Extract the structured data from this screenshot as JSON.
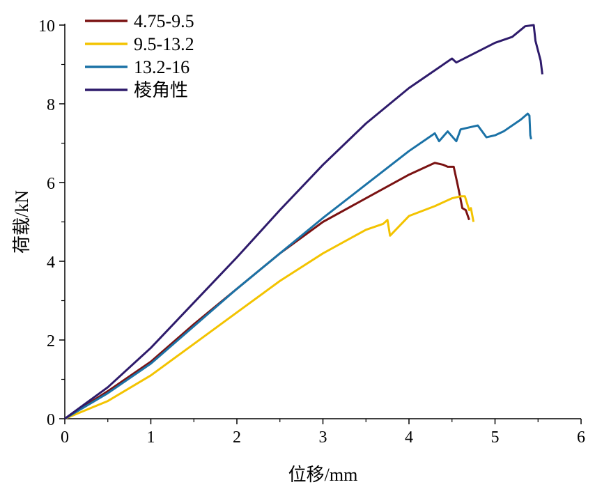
{
  "chart_data": {
    "type": "line",
    "title": "",
    "xlabel": "位移/mm",
    "ylabel": "荷载/kN",
    "xlim": [
      0,
      6
    ],
    "ylim": [
      0,
      10
    ],
    "xticks": [
      "0",
      "1",
      "2",
      "3",
      "4",
      "5",
      "6"
    ],
    "yticks": [
      "0",
      "2",
      "4",
      "6",
      "8",
      "10"
    ],
    "grid": false,
    "legend_position": "top-left",
    "series": [
      {
        "name": "4.75-9.5",
        "color": "#7a1212",
        "x": [
          0,
          0.5,
          1,
          1.5,
          2,
          2.5,
          3,
          3.5,
          4,
          4.2,
          4.3,
          4.4,
          4.45,
          4.52,
          4.57,
          4.62,
          4.66,
          4.7
        ],
        "y": [
          0,
          0.7,
          1.45,
          2.4,
          3.3,
          4.2,
          5.0,
          5.6,
          6.2,
          6.4,
          6.5,
          6.45,
          6.4,
          6.4,
          5.9,
          5.35,
          5.3,
          5.05
        ]
      },
      {
        "name": "9.5-13.2",
        "color": "#f3c300",
        "x": [
          0,
          0.5,
          1,
          1.5,
          2,
          2.5,
          3,
          3.5,
          3.7,
          3.75,
          3.78,
          4,
          4.3,
          4.5,
          4.6,
          4.65,
          4.7,
          4.72,
          4.75
        ],
        "y": [
          0,
          0.45,
          1.1,
          1.9,
          2.7,
          3.5,
          4.2,
          4.8,
          4.95,
          5.05,
          4.65,
          5.15,
          5.4,
          5.6,
          5.65,
          5.65,
          5.3,
          5.35,
          5.0
        ]
      },
      {
        "name": "13.2-16",
        "color": "#1b72a6",
        "x": [
          0,
          0.5,
          1,
          1.5,
          2,
          2.5,
          3,
          3.5,
          4,
          4.2,
          4.3,
          4.35,
          4.45,
          4.55,
          4.6,
          4.8,
          4.9,
          5.0,
          5.1,
          5.3,
          5.38,
          5.4,
          5.41,
          5.42
        ],
        "y": [
          0,
          0.65,
          1.4,
          2.35,
          3.3,
          4.2,
          5.1,
          5.95,
          6.8,
          7.1,
          7.25,
          7.05,
          7.3,
          7.05,
          7.35,
          7.45,
          7.15,
          7.2,
          7.3,
          7.6,
          7.75,
          7.7,
          7.2,
          7.1
        ]
      },
      {
        "name": "棱角性",
        "color": "#2e1b6b",
        "x": [
          0,
          0.5,
          1,
          1.5,
          2,
          2.5,
          3,
          3.5,
          4,
          4.3,
          4.5,
          4.55,
          5,
          5.2,
          5.35,
          5.45,
          5.47,
          5.5,
          5.53,
          5.55
        ],
        "y": [
          0,
          0.8,
          1.8,
          2.95,
          4.1,
          5.3,
          6.45,
          7.5,
          8.4,
          8.85,
          9.15,
          9.05,
          9.55,
          9.7,
          9.97,
          10.0,
          9.6,
          9.35,
          9.1,
          8.75
        ]
      }
    ]
  }
}
